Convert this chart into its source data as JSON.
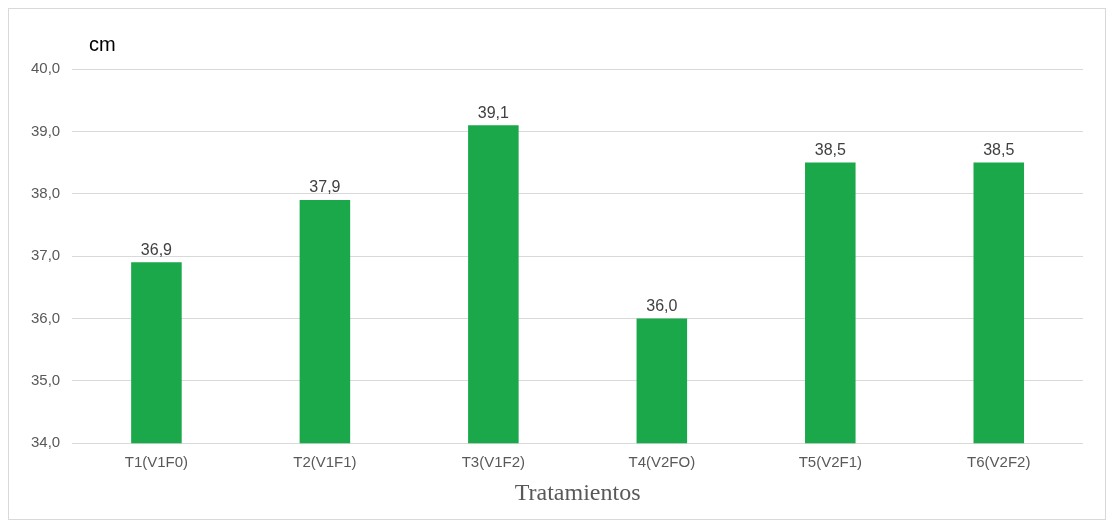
{
  "chart_data": {
    "type": "bar",
    "ylabel": "cm",
    "xlabel": "Tratamientos",
    "categories": [
      "T1(V1F0)",
      "T2(V1F1)",
      "T3(V1F2)",
      "T4(V2FO)",
      "T5(V2F1)",
      "T6(V2F2)"
    ],
    "values": [
      36.9,
      37.9,
      39.1,
      36.0,
      38.5,
      38.5
    ],
    "value_labels": [
      "36,9",
      "37,9",
      "39,1",
      "36,0",
      "38,5",
      "38,5"
    ],
    "color": "#1aa84a",
    "ylim": [
      34,
      40
    ],
    "yticks": [
      {
        "value": 34,
        "label": "34,0"
      },
      {
        "value": 35,
        "label": "35,0"
      },
      {
        "value": 36,
        "label": "36,0"
      },
      {
        "value": 37,
        "label": "37,0"
      },
      {
        "value": 38,
        "label": "38,0"
      },
      {
        "value": 39,
        "label": "39,0"
      },
      {
        "value": 40,
        "label": "40,0"
      }
    ],
    "grid": "y",
    "legend": false
  }
}
